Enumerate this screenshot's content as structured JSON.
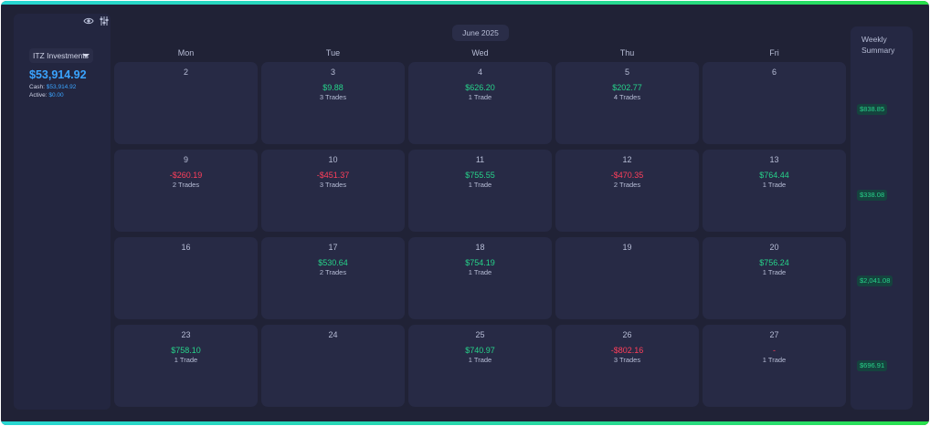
{
  "header": {
    "eye_icon": "eye-icon",
    "filter_icon": "sliders-icon"
  },
  "account": {
    "name": "ITZ Investments",
    "balance": "$53,914.92",
    "cash_label": "Cash:",
    "cash_value": "$53,914.92",
    "active_label": "Active:",
    "active_value": "$0.00"
  },
  "calendar": {
    "month": "June 2025",
    "days": [
      "Mon",
      "Tue",
      "Wed",
      "Thu",
      "Fri"
    ],
    "weeks": [
      [
        {
          "day": "2",
          "pnl": "",
          "trades": "",
          "sign": ""
        },
        {
          "day": "3",
          "pnl": "$9.88",
          "trades": "3 Trades",
          "sign": "pos"
        },
        {
          "day": "4",
          "pnl": "$626.20",
          "trades": "1 Trade",
          "sign": "pos"
        },
        {
          "day": "5",
          "pnl": "$202.77",
          "trades": "4 Trades",
          "sign": "pos"
        },
        {
          "day": "6",
          "pnl": "",
          "trades": "",
          "sign": ""
        }
      ],
      [
        {
          "day": "9",
          "pnl": "-$260.19",
          "trades": "2 Trades",
          "sign": "neg"
        },
        {
          "day": "10",
          "pnl": "-$451.37",
          "trades": "3 Trades",
          "sign": "neg"
        },
        {
          "day": "11",
          "pnl": "$755.55",
          "trades": "1 Trade",
          "sign": "pos"
        },
        {
          "day": "12",
          "pnl": "-$470.35",
          "trades": "2 Trades",
          "sign": "neg"
        },
        {
          "day": "13",
          "pnl": "$764.44",
          "trades": "1 Trade",
          "sign": "pos"
        }
      ],
      [
        {
          "day": "16",
          "pnl": "",
          "trades": "",
          "sign": ""
        },
        {
          "day": "17",
          "pnl": "$530.64",
          "trades": "2 Trades",
          "sign": "pos"
        },
        {
          "day": "18",
          "pnl": "$754.19",
          "trades": "1 Trade",
          "sign": "pos"
        },
        {
          "day": "19",
          "pnl": "",
          "trades": "",
          "sign": ""
        },
        {
          "day": "20",
          "pnl": "$756.24",
          "trades": "1 Trade",
          "sign": "pos"
        }
      ],
      [
        {
          "day": "23",
          "pnl": "$758.10",
          "trades": "1 Trade",
          "sign": "pos"
        },
        {
          "day": "24",
          "pnl": "",
          "trades": "",
          "sign": ""
        },
        {
          "day": "25",
          "pnl": "$740.97",
          "trades": "1 Trade",
          "sign": "pos"
        },
        {
          "day": "26",
          "pnl": "-$802.16",
          "trades": "3 Trades",
          "sign": "neg"
        },
        {
          "day": "27",
          "pnl": "-",
          "trades": "1 Trade",
          "sign": "neg"
        }
      ]
    ]
  },
  "weekly_summary": {
    "title": "Weekly Summary",
    "weeks": [
      "$838.85",
      "$338.08",
      "$2,041.08",
      "$696.91"
    ]
  },
  "colors": {
    "background": "#202236",
    "positive": "#27d38a",
    "negative": "#ff3f5b",
    "accent": "#3aa4ff"
  }
}
